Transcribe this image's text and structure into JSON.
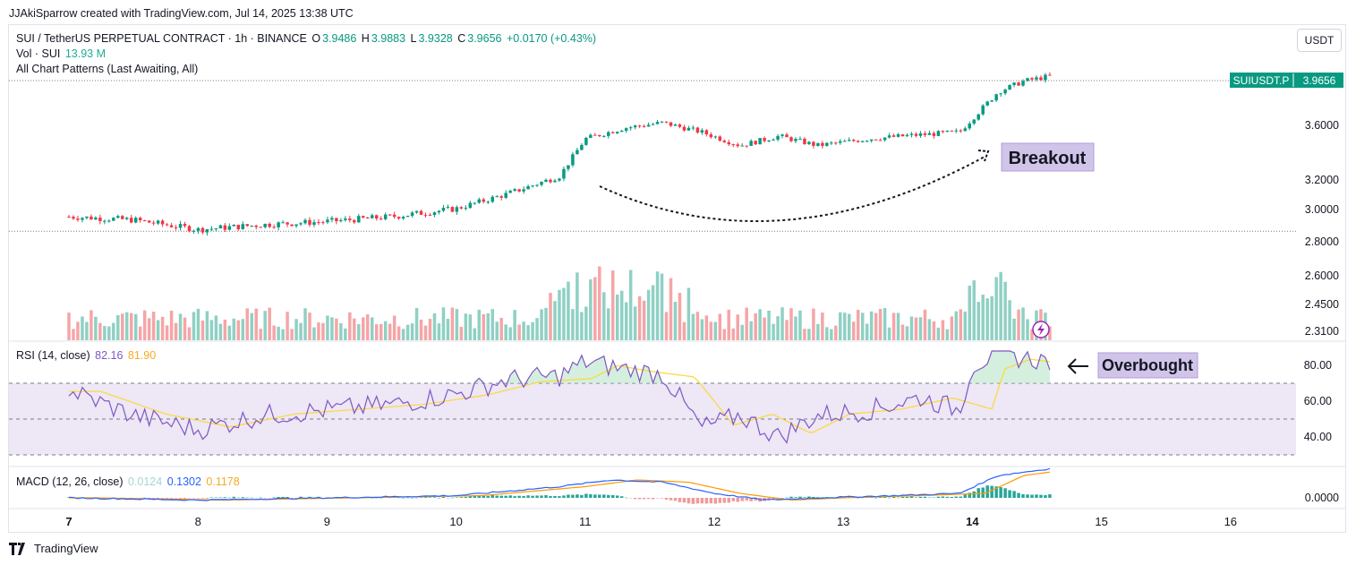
{
  "header": {
    "caption": "JJAkiSparrow created with TradingView.com, Jul 14, 2025 13:38 UTC"
  },
  "legend": {
    "symbol": "SUI / TetherUS PERPETUAL CONTRACT · 1h · BINANCE",
    "o_label": "O",
    "o_value": "3.9486",
    "h_label": "H",
    "h_value": "3.9883",
    "l_label": "L",
    "l_value": "3.9328",
    "c_label": "C",
    "c_value": "3.9656",
    "change": "+0.0170 (+0.43%)",
    "vol_label": "Vol · SUI",
    "vol_value": "13.93 M",
    "patterns": "All Chart Patterns (Last Awaiting, All)"
  },
  "currency_button": "USDT",
  "price_badge": {
    "symbol": "SUIUSDT.P",
    "value": "3.9656"
  },
  "annotations": {
    "breakout": "Breakout",
    "overbought": "Overbought"
  },
  "rsi_legend": {
    "label": "RSI (14, close)",
    "rsi": "82.16",
    "ma": "81.90"
  },
  "macd_legend": {
    "label": "MACD (12, 26, close)",
    "hist": "0.0124",
    "macd": "0.1302",
    "signal": "0.1178"
  },
  "footer": {
    "brand": "TradingView"
  },
  "colors": {
    "up": "#089981",
    "down": "#f23645",
    "vol_up": "#8fd0c4",
    "vol_down": "#f5a5a7",
    "rsi": "#7e57c2",
    "rsi_ma": "#fdd835",
    "macd": "#2962ff",
    "signal": "#ff9800",
    "band": "#ede7f6",
    "tag": "#d1c4e9"
  },
  "chart_data": {
    "type": "candlestick",
    "interval": "1h",
    "x_ticks": [
      "7",
      "8",
      "9",
      "10",
      "11",
      "12",
      "13",
      "14",
      "15",
      "16"
    ],
    "bold_ticks": [
      "7",
      "14"
    ],
    "price_ticks": [
      "3.6000",
      "3.2000",
      "3.0000",
      "2.8000",
      "2.6000",
      "2.4500",
      "2.3100"
    ],
    "price_range": [
      2.3,
      4.0
    ],
    "price_anchors": [
      {
        "t": 0,
        "p": 2.95
      },
      {
        "t": 0.5,
        "p": 2.93
      },
      {
        "t": 1.0,
        "p": 2.87
      },
      {
        "t": 1.5,
        "p": 2.9
      },
      {
        "t": 2.0,
        "p": 2.92
      },
      {
        "t": 2.5,
        "p": 2.95
      },
      {
        "t": 3.0,
        "p": 3.0
      },
      {
        "t": 3.4,
        "p": 3.1
      },
      {
        "t": 3.8,
        "p": 3.22
      },
      {
        "t": 4.0,
        "p": 3.5
      },
      {
        "t": 4.3,
        "p": 3.58
      },
      {
        "t": 4.6,
        "p": 3.62
      },
      {
        "t": 4.9,
        "p": 3.55
      },
      {
        "t": 5.2,
        "p": 3.45
      },
      {
        "t": 5.5,
        "p": 3.52
      },
      {
        "t": 5.8,
        "p": 3.45
      },
      {
        "t": 6.2,
        "p": 3.5
      },
      {
        "t": 6.6,
        "p": 3.53
      },
      {
        "t": 6.9,
        "p": 3.55
      },
      {
        "t": 7.0,
        "p": 3.65
      },
      {
        "t": 7.2,
        "p": 3.85
      },
      {
        "t": 7.4,
        "p": 3.93
      },
      {
        "t": 7.6,
        "p": 3.9656
      }
    ],
    "rsi_ticks": [
      "80.00",
      "60.00",
      "40.00"
    ],
    "rsi_levels": {
      "upper": 70,
      "middle": 50,
      "lower": 30
    },
    "rsi_range": [
      22,
      88
    ],
    "rsi_anchors": [
      {
        "t": 0,
        "p": 66
      },
      {
        "t": 0.5,
        "p": 52
      },
      {
        "t": 1.0,
        "p": 44
      },
      {
        "t": 1.5,
        "p": 52
      },
      {
        "t": 2.0,
        "p": 55
      },
      {
        "t": 2.5,
        "p": 58
      },
      {
        "t": 3.0,
        "p": 64
      },
      {
        "t": 3.4,
        "p": 72
      },
      {
        "t": 3.8,
        "p": 74
      },
      {
        "t": 4.0,
        "p": 82
      },
      {
        "t": 4.3,
        "p": 78
      },
      {
        "t": 4.6,
        "p": 75
      },
      {
        "t": 4.9,
        "p": 45
      },
      {
        "t": 5.2,
        "p": 52
      },
      {
        "t": 5.5,
        "p": 40
      },
      {
        "t": 5.8,
        "p": 52
      },
      {
        "t": 6.2,
        "p": 55
      },
      {
        "t": 6.6,
        "p": 62
      },
      {
        "t": 6.9,
        "p": 55
      },
      {
        "t": 7.0,
        "p": 80
      },
      {
        "t": 7.2,
        "p": 86
      },
      {
        "t": 7.4,
        "p": 84
      },
      {
        "t": 7.6,
        "p": 82.16
      }
    ],
    "macd_ticks": [
      "0.0000"
    ],
    "macd_range": [
      -0.04,
      0.16
    ],
    "macd_anchors": [
      {
        "t": 0,
        "p": 0.0
      },
      {
        "t": 1.0,
        "p": -0.01
      },
      {
        "t": 2.0,
        "p": 0.0
      },
      {
        "t": 3.0,
        "p": 0.01
      },
      {
        "t": 3.4,
        "p": 0.03
      },
      {
        "t": 3.8,
        "p": 0.05
      },
      {
        "t": 4.2,
        "p": 0.08
      },
      {
        "t": 4.6,
        "p": 0.07
      },
      {
        "t": 5.0,
        "p": 0.02
      },
      {
        "t": 5.4,
        "p": -0.01
      },
      {
        "t": 5.8,
        "p": 0.0
      },
      {
        "t": 6.4,
        "p": 0.01
      },
      {
        "t": 6.9,
        "p": 0.02
      },
      {
        "t": 7.2,
        "p": 0.1
      },
      {
        "t": 7.6,
        "p": 0.13
      }
    ]
  }
}
